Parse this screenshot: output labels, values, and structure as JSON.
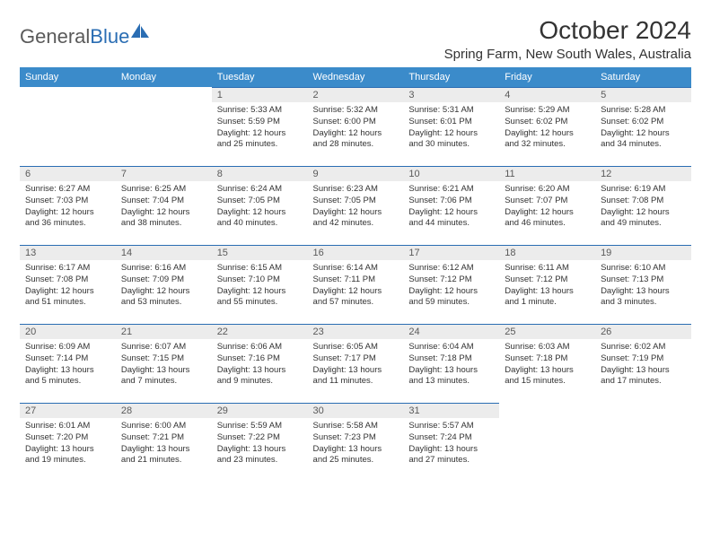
{
  "logo": {
    "text_grey": "General",
    "text_blue": "Blue"
  },
  "title": "October 2024",
  "location": "Spring Farm, New South Wales, Australia",
  "colors": {
    "header_bg": "#3b8bca",
    "daynum_bg": "#ececec",
    "border": "#2a6db3",
    "text": "#333333",
    "logo_grey": "#5a5a5a",
    "logo_blue": "#2a6db3"
  },
  "weekdays": [
    "Sunday",
    "Monday",
    "Tuesday",
    "Wednesday",
    "Thursday",
    "Friday",
    "Saturday"
  ],
  "weeks": [
    [
      null,
      null,
      {
        "n": "1",
        "sr": "5:33 AM",
        "ss": "5:59 PM",
        "dl": "12 hours and 25 minutes."
      },
      {
        "n": "2",
        "sr": "5:32 AM",
        "ss": "6:00 PM",
        "dl": "12 hours and 28 minutes."
      },
      {
        "n": "3",
        "sr": "5:31 AM",
        "ss": "6:01 PM",
        "dl": "12 hours and 30 minutes."
      },
      {
        "n": "4",
        "sr": "5:29 AM",
        "ss": "6:02 PM",
        "dl": "12 hours and 32 minutes."
      },
      {
        "n": "5",
        "sr": "5:28 AM",
        "ss": "6:02 PM",
        "dl": "12 hours and 34 minutes."
      }
    ],
    [
      {
        "n": "6",
        "sr": "6:27 AM",
        "ss": "7:03 PM",
        "dl": "12 hours and 36 minutes."
      },
      {
        "n": "7",
        "sr": "6:25 AM",
        "ss": "7:04 PM",
        "dl": "12 hours and 38 minutes."
      },
      {
        "n": "8",
        "sr": "6:24 AM",
        "ss": "7:05 PM",
        "dl": "12 hours and 40 minutes."
      },
      {
        "n": "9",
        "sr": "6:23 AM",
        "ss": "7:05 PM",
        "dl": "12 hours and 42 minutes."
      },
      {
        "n": "10",
        "sr": "6:21 AM",
        "ss": "7:06 PM",
        "dl": "12 hours and 44 minutes."
      },
      {
        "n": "11",
        "sr": "6:20 AM",
        "ss": "7:07 PM",
        "dl": "12 hours and 46 minutes."
      },
      {
        "n": "12",
        "sr": "6:19 AM",
        "ss": "7:08 PM",
        "dl": "12 hours and 49 minutes."
      }
    ],
    [
      {
        "n": "13",
        "sr": "6:17 AM",
        "ss": "7:08 PM",
        "dl": "12 hours and 51 minutes."
      },
      {
        "n": "14",
        "sr": "6:16 AM",
        "ss": "7:09 PM",
        "dl": "12 hours and 53 minutes."
      },
      {
        "n": "15",
        "sr": "6:15 AM",
        "ss": "7:10 PM",
        "dl": "12 hours and 55 minutes."
      },
      {
        "n": "16",
        "sr": "6:14 AM",
        "ss": "7:11 PM",
        "dl": "12 hours and 57 minutes."
      },
      {
        "n": "17",
        "sr": "6:12 AM",
        "ss": "7:12 PM",
        "dl": "12 hours and 59 minutes."
      },
      {
        "n": "18",
        "sr": "6:11 AM",
        "ss": "7:12 PM",
        "dl": "13 hours and 1 minute."
      },
      {
        "n": "19",
        "sr": "6:10 AM",
        "ss": "7:13 PM",
        "dl": "13 hours and 3 minutes."
      }
    ],
    [
      {
        "n": "20",
        "sr": "6:09 AM",
        "ss": "7:14 PM",
        "dl": "13 hours and 5 minutes."
      },
      {
        "n": "21",
        "sr": "6:07 AM",
        "ss": "7:15 PM",
        "dl": "13 hours and 7 minutes."
      },
      {
        "n": "22",
        "sr": "6:06 AM",
        "ss": "7:16 PM",
        "dl": "13 hours and 9 minutes."
      },
      {
        "n": "23",
        "sr": "6:05 AM",
        "ss": "7:17 PM",
        "dl": "13 hours and 11 minutes."
      },
      {
        "n": "24",
        "sr": "6:04 AM",
        "ss": "7:18 PM",
        "dl": "13 hours and 13 minutes."
      },
      {
        "n": "25",
        "sr": "6:03 AM",
        "ss": "7:18 PM",
        "dl": "13 hours and 15 minutes."
      },
      {
        "n": "26",
        "sr": "6:02 AM",
        "ss": "7:19 PM",
        "dl": "13 hours and 17 minutes."
      }
    ],
    [
      {
        "n": "27",
        "sr": "6:01 AM",
        "ss": "7:20 PM",
        "dl": "13 hours and 19 minutes."
      },
      {
        "n": "28",
        "sr": "6:00 AM",
        "ss": "7:21 PM",
        "dl": "13 hours and 21 minutes."
      },
      {
        "n": "29",
        "sr": "5:59 AM",
        "ss": "7:22 PM",
        "dl": "13 hours and 23 minutes."
      },
      {
        "n": "30",
        "sr": "5:58 AM",
        "ss": "7:23 PM",
        "dl": "13 hours and 25 minutes."
      },
      {
        "n": "31",
        "sr": "5:57 AM",
        "ss": "7:24 PM",
        "dl": "13 hours and 27 minutes."
      },
      null,
      null
    ]
  ],
  "labels": {
    "sunrise": "Sunrise:",
    "sunset": "Sunset:",
    "daylight": "Daylight:"
  }
}
